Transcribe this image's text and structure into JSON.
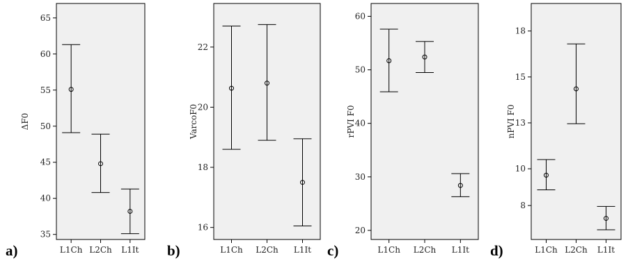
{
  "chart_data": [
    {
      "type": "errorbar",
      "panel_label": "a)",
      "ylabel": "ΔF0",
      "categories": [
        "L1Ch",
        "L2Ch",
        "L1It"
      ],
      "mean": [
        55.1,
        44.8,
        38.2
      ],
      "lower": [
        49.1,
        40.8,
        35.1
      ],
      "upper": [
        61.3,
        48.9,
        41.3
      ],
      "ylim": [
        34.3,
        67.0
      ],
      "yticks": [
        35,
        40,
        45,
        50,
        55,
        60,
        65
      ],
      "ytick_labels": [
        "35",
        "40",
        "45",
        "50",
        "55",
        "60",
        "65"
      ],
      "background": "#f0f0f0"
    },
    {
      "type": "errorbar",
      "panel_label": "b)",
      "ylabel": "VarcoF0",
      "categories": [
        "L1Ch",
        "L2Ch",
        "L1It"
      ],
      "mean": [
        20.63,
        20.8,
        17.5
      ],
      "lower": [
        18.6,
        18.9,
        16.05
      ],
      "upper": [
        22.7,
        22.75,
        18.95
      ],
      "ylim": [
        15.6,
        23.45
      ],
      "yticks": [
        16,
        18,
        20,
        22
      ],
      "ytick_labels": [
        "16",
        "18",
        "20",
        "22"
      ],
      "background": "#f0f0f0"
    },
    {
      "type": "errorbar",
      "panel_label": "c)",
      "ylabel": "rPVI F0",
      "categories": [
        "L1Ch",
        "L2Ch",
        "L1It"
      ],
      "mean": [
        51.7,
        52.4,
        28.4
      ],
      "lower": [
        45.9,
        49.5,
        26.3
      ],
      "upper": [
        57.6,
        55.3,
        30.6
      ],
      "ylim": [
        18.3,
        62.4
      ],
      "yticks": [
        20,
        30,
        40,
        50,
        60
      ],
      "ytick_labels": [
        "20",
        "30",
        "40",
        "50",
        "60"
      ],
      "background": "#f0f0f0"
    },
    {
      "type": "errorbar",
      "panel_label": "d)",
      "ylabel": "nPVI F0",
      "categories": [
        "L1Ch",
        "L2Ch",
        "L1It"
      ],
      "mean": [
        9.65,
        14.35,
        7.3
      ],
      "lower": [
        8.85,
        12.45,
        6.68
      ],
      "upper": [
        10.5,
        16.8,
        7.95
      ],
      "ylim": [
        6.15,
        19.0
      ],
      "yticks": [
        8,
        10,
        12.5,
        15,
        17.5
      ],
      "ytick_labels": [
        "8",
        "10",
        "13",
        "15",
        "18"
      ],
      "background": "#f0f0f0"
    }
  ]
}
